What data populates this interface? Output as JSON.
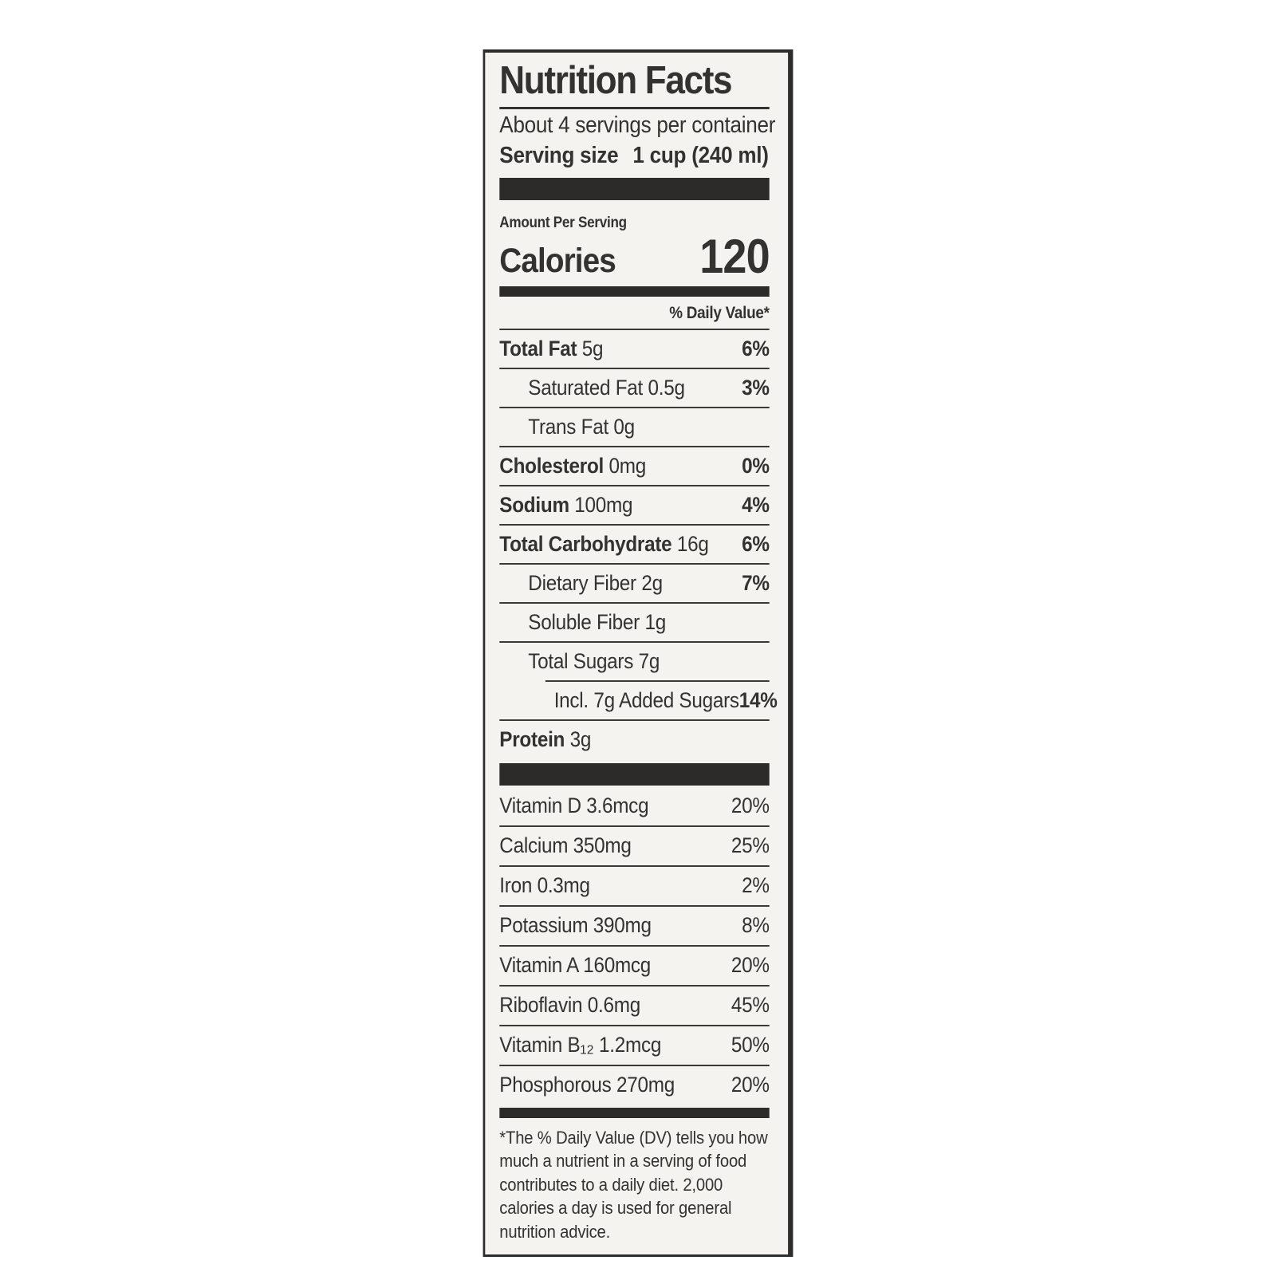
{
  "label": {
    "title": "Nutrition Facts",
    "servings_per_container": "About 4 servings per container",
    "serving_size_label": "Serving size",
    "serving_size_value": "1 cup (240 ml)",
    "amount_per_serving": "Amount Per Serving",
    "calories_label": "Calories",
    "calories_value": "120",
    "daily_value_header": "% Daily Value*",
    "nutrient_rows": [
      {
        "name": "Total Fat",
        "amount": "5g",
        "pct": "6%",
        "bold": true,
        "indent": 0
      },
      {
        "name": "Saturated Fat",
        "amount": "0.5g",
        "pct": "3%",
        "bold": false,
        "indent": 1
      },
      {
        "name": "Trans Fat",
        "amount": "0g",
        "pct": "",
        "bold": false,
        "indent": 1
      },
      {
        "name": "Cholesterol",
        "amount": "0mg",
        "pct": "0%",
        "bold": true,
        "indent": 0
      },
      {
        "name": "Sodium",
        "amount": "100mg",
        "pct": "4%",
        "bold": true,
        "indent": 0
      },
      {
        "name": "Total Carbohydrate",
        "amount": "16g",
        "pct": "6%",
        "bold": true,
        "indent": 0
      },
      {
        "name": "Dietary Fiber",
        "amount": "2g",
        "pct": "7%",
        "bold": false,
        "indent": 1
      },
      {
        "name": "Soluble Fiber",
        "amount": "1g",
        "pct": "",
        "bold": false,
        "indent": 1
      },
      {
        "name": "Total Sugars",
        "amount": "7g",
        "pct": "",
        "bold": false,
        "indent": 1
      },
      {
        "name": "Incl. 7g Added Sugars",
        "amount": "",
        "pct": "14%",
        "bold": false,
        "indent": 2,
        "short_divider": true
      },
      {
        "name": "Protein",
        "amount": "3g",
        "pct": "",
        "bold": true,
        "indent": 0
      }
    ],
    "vitamin_rows": [
      {
        "name": "Vitamin D",
        "amount": "3.6mcg",
        "pct": "20%",
        "bold": false,
        "indent": 0
      },
      {
        "name": "Calcium",
        "amount": "350mg",
        "pct": "25%",
        "bold": false,
        "indent": 0
      },
      {
        "name": "Iron",
        "amount": "0.3mg",
        "pct": "2%",
        "bold": false,
        "indent": 0
      },
      {
        "name": "Potassium",
        "amount": "390mg",
        "pct": "8%",
        "bold": false,
        "indent": 0
      },
      {
        "name": "Vitamin A",
        "amount": "160mcg",
        "pct": "20%",
        "bold": false,
        "indent": 0
      },
      {
        "name": "Riboflavin",
        "amount": "0.6mg",
        "pct": "45%",
        "bold": false,
        "indent": 0
      },
      {
        "name": "Vitamin B₁₂",
        "amount": "1.2mcg",
        "pct": "50%",
        "bold": false,
        "indent": 0
      },
      {
        "name": "Phosphorous",
        "amount": "270mg",
        "pct": "20%",
        "bold": false,
        "indent": 0
      }
    ],
    "footnote": "*The % Daily Value (DV) tells you how much a nutrient in a serving of food contributes to a daily diet. 2,000 calories a day is used for general nutrition advice."
  },
  "colors": {
    "ink": "#333230",
    "bar": "#2c2b29",
    "label_background": "#f4f3f0",
    "page_background": "#ffffff"
  }
}
